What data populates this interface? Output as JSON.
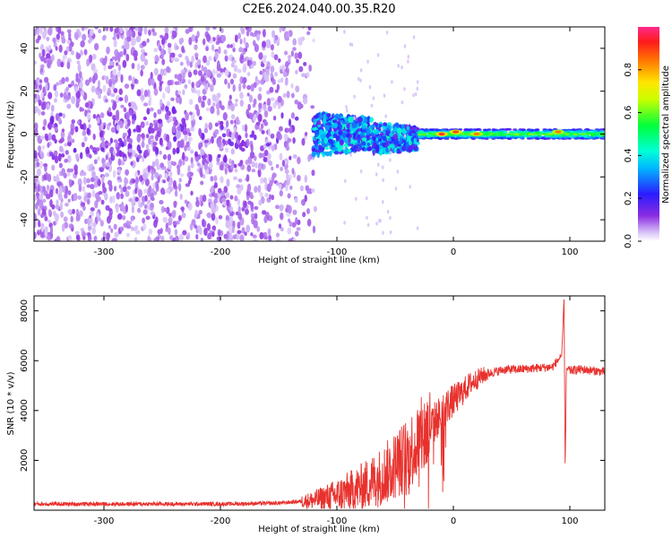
{
  "title": "C2E6.2024.040.00.35.R20",
  "colors": {
    "snr_line": "#e8312d",
    "spec_main": "#6a22f0",
    "spec_faint": "#c9a9f5",
    "axis": "#000000"
  },
  "chart_data": [
    {
      "type": "heatmap",
      "name": "spectrogram",
      "xlabel": "Height of straight line (km)",
      "ylabel": "Frequency (Hz)",
      "xlim": [
        -360,
        130
      ],
      "ylim": [
        -50,
        50
      ],
      "xticks": [
        -300,
        -200,
        -100,
        0,
        100
      ],
      "yticks": [
        -40,
        -20,
        0,
        20,
        40
      ],
      "grid": false,
      "colorbar": {
        "label": "Normalized spectral amplitude",
        "range": [
          0.0,
          1.0
        ],
        "ticks": [
          0.0,
          0.2,
          0.4,
          0.6,
          0.8
        ],
        "colormap": "white-violet-blue-cyan-green-yellow-orange-red-magenta"
      },
      "regions": [
        {
          "x": [
            -360,
            -110
          ],
          "freq_spread": [
            -50,
            50
          ],
          "level": "low",
          "pattern": "scattered speckle"
        },
        {
          "x": [
            -120,
            -30
          ],
          "freq_spread": [
            -12,
            10
          ],
          "level": "medium",
          "pattern": "dense cluster"
        },
        {
          "x": [
            -30,
            130
          ],
          "freq_spread": [
            -2,
            2
          ],
          "level": "high",
          "pattern": "narrow carrier band near 0 Hz"
        }
      ],
      "peaks": [
        {
          "x": -10,
          "freq": 0,
          "level": 0.95
        },
        {
          "x": 2,
          "freq": 1,
          "level": 0.9
        },
        {
          "x": 20,
          "freq": 0,
          "level": 0.85
        },
        {
          "x": 90,
          "freq": 1,
          "level": 0.85
        }
      ]
    },
    {
      "type": "line",
      "name": "snr",
      "xlabel": "Height of straight line (km)",
      "ylabel": "SNR (10 * v/v)",
      "xlim": [
        -360,
        130
      ],
      "ylim": [
        0,
        8600
      ],
      "xticks": [
        -300,
        -200,
        -100,
        0,
        100
      ],
      "yticks": [
        2000,
        4000,
        6000,
        8000
      ],
      "grid": false,
      "series": [
        {
          "color": "#e8312d",
          "x": [
            -360,
            -300,
            -250,
            -200,
            -150,
            -120,
            -100,
            -80,
            -60,
            -45,
            -35,
            -25,
            -15,
            -5,
            5,
            15,
            25,
            35,
            45,
            55,
            70,
            85,
            93,
            95,
            96,
            97,
            100,
            110,
            120,
            130
          ],
          "y": [
            250,
            250,
            250,
            250,
            280,
            400,
            600,
            900,
            1400,
            2000,
            2500,
            3000,
            3600,
            4200,
            4600,
            5100,
            5400,
            5550,
            5650,
            5650,
            5700,
            5750,
            6200,
            8500,
            1500,
            5700,
            5600,
            5650,
            5600,
            5550
          ]
        }
      ]
    }
  ]
}
